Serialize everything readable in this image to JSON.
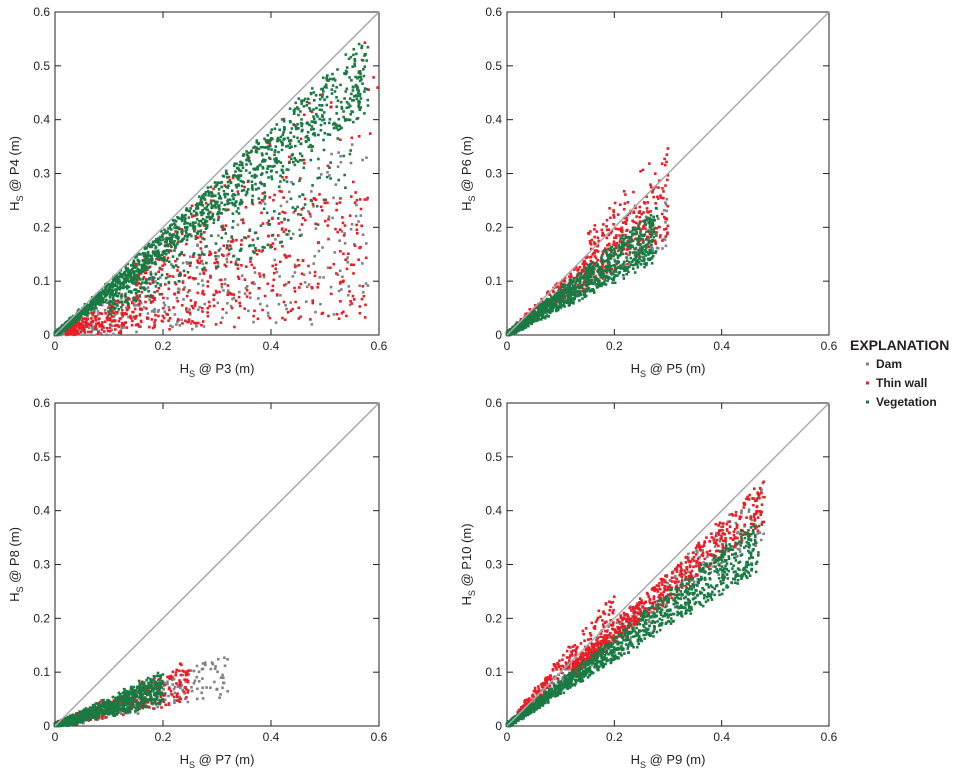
{
  "colors": {
    "dam": "#808285",
    "thin_wall": "#ed1c24",
    "vegetation": "#1a7a43",
    "one_to_one": "#a7a9ac"
  },
  "legend": {
    "title": "EXPLANATION",
    "items": [
      {
        "label": "Dam",
        "color": "#808285"
      },
      {
        "label": "Thin wall",
        "color": "#ed1c24"
      },
      {
        "label": "Vegetation",
        "color": "#1a7a43"
      }
    ]
  },
  "chart_data": [
    {
      "type": "scatter",
      "xlabel_main": "H",
      "xlabel_sub": "S",
      "xlabel_rest": " @ P3 (m)",
      "ylabel_main": "H",
      "ylabel_sub": "S",
      "ylabel_rest": " @ P4 (m)",
      "xlim": [
        0,
        0.6
      ],
      "ylim": [
        0,
        0.6
      ],
      "xticks": [
        "0",
        "0.2",
        "0.4",
        "0.6"
      ],
      "yticks": [
        "0",
        "0.1",
        "0.2",
        "0.3",
        "0.4",
        "0.5",
        "0.6"
      ],
      "one_to_one_line": true,
      "series": [
        {
          "name": "Dam",
          "clusters": [
            {
              "x": [
                0,
                0.58
              ],
              "slope": [
                0.05,
                0.65
              ],
              "n": 380
            }
          ]
        },
        {
          "name": "Thin wall",
          "clusters": [
            {
              "x": [
                0.02,
                0.58
              ],
              "slope": [
                0.05,
                0.55
              ],
              "n": 600
            },
            {
              "x": [
                0.15,
                0.6
              ],
              "slope": [
                0.6,
                0.95
              ],
              "n": 150
            }
          ]
        },
        {
          "name": "Vegetation",
          "clusters": [
            {
              "x": [
                0,
                0.58
              ],
              "slope": [
                0.72,
                0.96
              ],
              "n": 1400
            },
            {
              "x": [
                0.1,
                0.55
              ],
              "slope": [
                0.4,
                0.72
              ],
              "n": 250
            }
          ]
        }
      ]
    },
    {
      "type": "scatter",
      "xlabel_main": "H",
      "xlabel_sub": "S",
      "xlabel_rest": " @ P5 (m)",
      "ylabel_main": "H",
      "ylabel_sub": "S",
      "ylabel_rest": " @ P6 (m)",
      "xlim": [
        0,
        0.6
      ],
      "ylim": [
        0,
        0.6
      ],
      "xticks": [
        "0",
        "0.2",
        "0.4",
        "0.6"
      ],
      "yticks": [
        "0",
        "0.1",
        "0.2",
        "0.3",
        "0.4",
        "0.5",
        "0.6"
      ],
      "one_to_one_line": true,
      "series": [
        {
          "name": "Dam",
          "clusters": [
            {
              "x": [
                0,
                0.3
              ],
              "slope": [
                0.55,
                0.85
              ],
              "n": 250
            }
          ]
        },
        {
          "name": "Thin wall",
          "clusters": [
            {
              "x": [
                0,
                0.3
              ],
              "slope": [
                0.6,
                1.0
              ],
              "n": 500
            },
            {
              "x": [
                0.15,
                0.3
              ],
              "slope": [
                1.0,
                1.25
              ],
              "n": 60
            }
          ]
        },
        {
          "name": "Vegetation",
          "clusters": [
            {
              "x": [
                0,
                0.28
              ],
              "slope": [
                0.5,
                0.85
              ],
              "n": 1100
            }
          ]
        }
      ]
    },
    {
      "type": "scatter",
      "xlabel_main": "H",
      "xlabel_sub": "S",
      "xlabel_rest": " @ P7 (m)",
      "ylabel_main": "H",
      "ylabel_sub": "S",
      "ylabel_rest": " @ P8 (m)",
      "xlim": [
        0,
        0.6
      ],
      "ylim": [
        0,
        0.6
      ],
      "xticks": [
        "0",
        "0.2",
        "0.4",
        "0.6"
      ],
      "yticks": [
        "0",
        "0.1",
        "0.2",
        "0.3",
        "0.4",
        "0.5",
        "0.6"
      ],
      "one_to_one_line": true,
      "series": [
        {
          "name": "Dam",
          "clusters": [
            {
              "x": [
                0,
                0.32
              ],
              "slope": [
                0.18,
                0.42
              ],
              "n": 300
            }
          ]
        },
        {
          "name": "Thin wall",
          "clusters": [
            {
              "x": [
                0,
                0.25
              ],
              "slope": [
                0.2,
                0.48
              ],
              "n": 350
            }
          ]
        },
        {
          "name": "Vegetation",
          "clusters": [
            {
              "x": [
                0,
                0.2
              ],
              "slope": [
                0.22,
                0.5
              ],
              "n": 900
            }
          ]
        }
      ]
    },
    {
      "type": "scatter",
      "xlabel_main": "H",
      "xlabel_sub": "S",
      "xlabel_rest": " @ P9 (m)",
      "ylabel_main": "H",
      "ylabel_sub": "S",
      "ylabel_rest": " @ P10 (m)",
      "xlim": [
        0,
        0.6
      ],
      "ylim": [
        0,
        0.6
      ],
      "xticks": [
        "0",
        "0.2",
        "0.4",
        "0.6"
      ],
      "yticks": [
        "0",
        "0.1",
        "0.2",
        "0.3",
        "0.4",
        "0.5",
        "0.6"
      ],
      "one_to_one_line": true,
      "series": [
        {
          "name": "Dam",
          "clusters": [
            {
              "x": [
                0,
                0.48
              ],
              "slope": [
                0.72,
                0.95
              ],
              "n": 350
            }
          ]
        },
        {
          "name": "Thin wall",
          "clusters": [
            {
              "x": [
                0.12,
                0.48
              ],
              "slope": [
                0.78,
                0.95
              ],
              "n": 650
            },
            {
              "x": [
                0.02,
                0.2
              ],
              "slope": [
                0.95,
                1.25
              ],
              "n": 200
            }
          ]
        },
        {
          "name": "Vegetation",
          "clusters": [
            {
              "x": [
                0,
                0.47
              ],
              "slope": [
                0.62,
                0.82
              ],
              "n": 1300
            }
          ]
        }
      ]
    }
  ]
}
